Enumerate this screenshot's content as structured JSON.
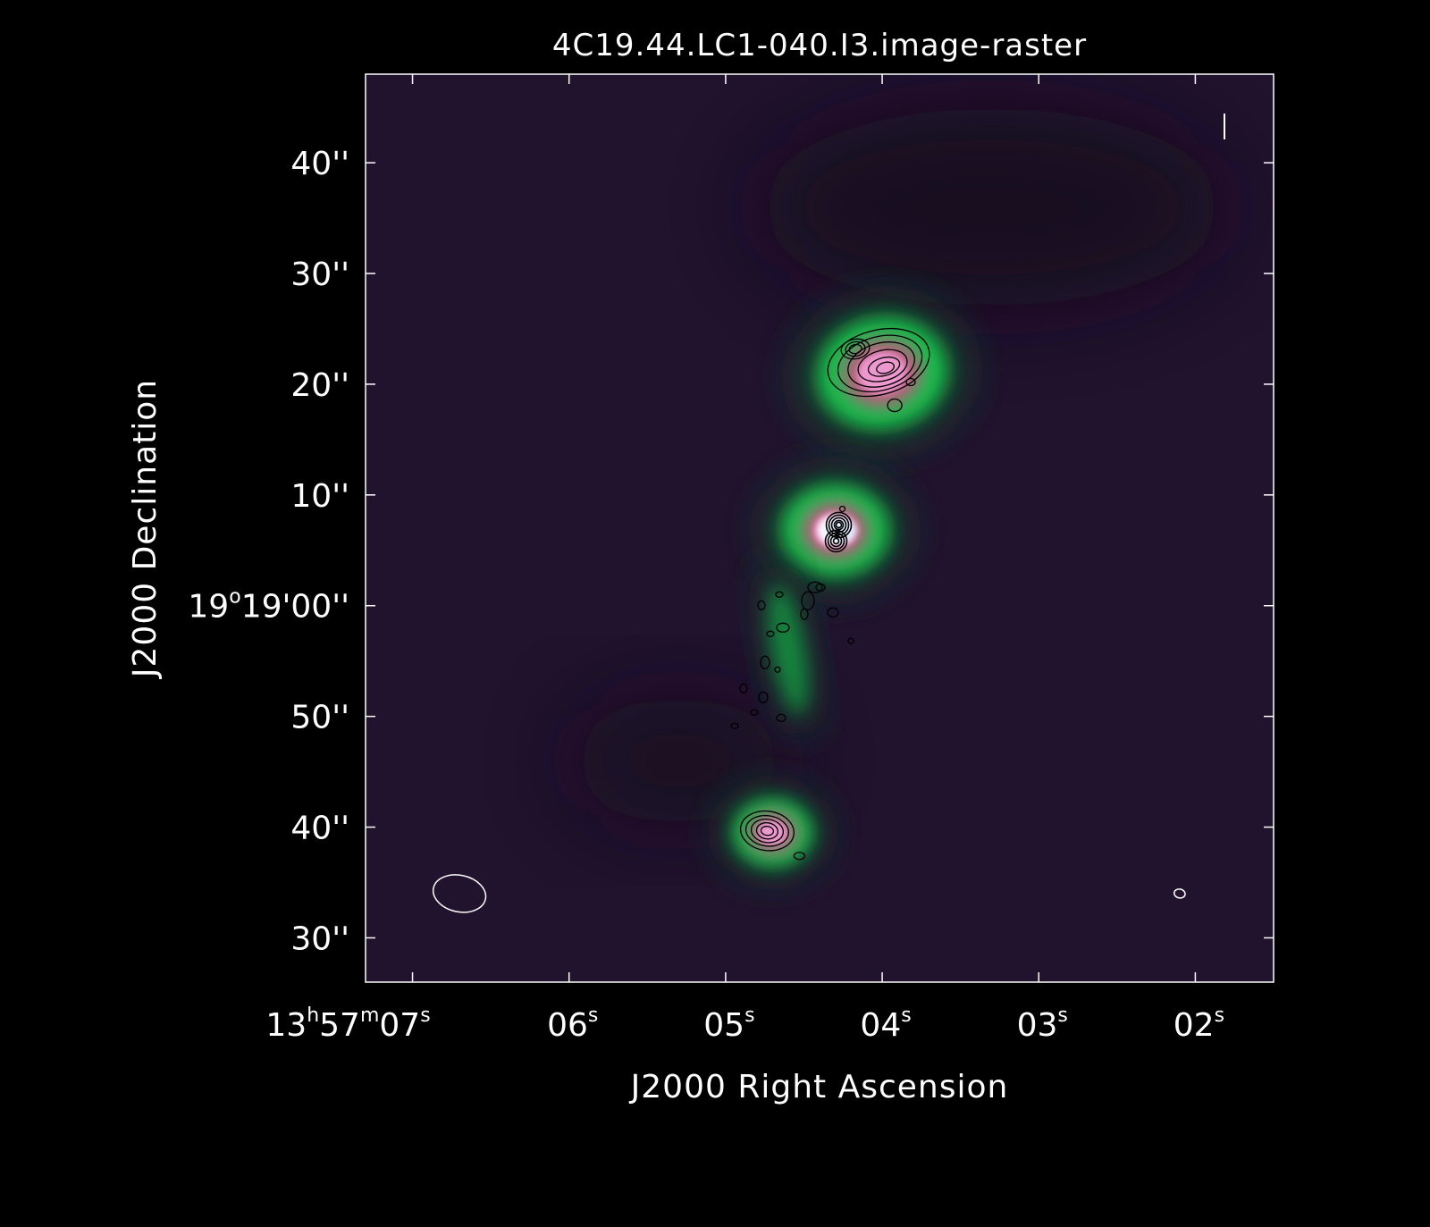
{
  "chart_data": {
    "type": "heatmap",
    "title": "4C19.44.LC1-040.I3.image-raster",
    "xlabel": "J2000 Right Ascension",
    "ylabel": "J2000 Declination",
    "x_ticks": [
      {
        "value_s": 7,
        "parts": [
          [
            "13",
            ""
          ],
          [
            "h",
            "sup"
          ],
          [
            "57",
            ""
          ],
          [
            "m",
            "sup"
          ],
          [
            "07",
            ""
          ],
          [
            "s",
            "sup"
          ]
        ]
      },
      {
        "value_s": 6,
        "parts": [
          [
            "06",
            ""
          ],
          [
            "s",
            "sup"
          ]
        ]
      },
      {
        "value_s": 5,
        "parts": [
          [
            "05",
            ""
          ],
          [
            "s",
            "sup"
          ]
        ]
      },
      {
        "value_s": 4,
        "parts": [
          [
            "04",
            ""
          ],
          [
            "s",
            "sup"
          ]
        ]
      },
      {
        "value_s": 3,
        "parts": [
          [
            "03",
            ""
          ],
          [
            "s",
            "sup"
          ]
        ]
      },
      {
        "value_s": 2,
        "parts": [
          [
            "02",
            ""
          ],
          [
            "s",
            "sup"
          ]
        ]
      }
    ],
    "y_ticks": [
      {
        "value_arcsec": 40,
        "parts": [
          [
            "40''",
            ""
          ]
        ]
      },
      {
        "value_arcsec": 30,
        "parts": [
          [
            "30''",
            ""
          ]
        ]
      },
      {
        "value_arcsec": 20,
        "parts": [
          [
            "20''",
            ""
          ]
        ]
      },
      {
        "value_arcsec": 10,
        "parts": [
          [
            "10''",
            ""
          ]
        ]
      },
      {
        "value_arcsec": 0,
        "parts": [
          [
            "19",
            ""
          ],
          [
            "o",
            "sup"
          ],
          [
            "19'00''",
            ""
          ]
        ]
      },
      {
        "value_arcsec": -10,
        "parts": [
          [
            "50''",
            ""
          ]
        ]
      },
      {
        "value_arcsec": -20,
        "parts": [
          [
            "40''",
            ""
          ]
        ]
      },
      {
        "value_arcsec": -30,
        "parts": [
          [
            "30''",
            ""
          ]
        ]
      }
    ],
    "x_range_s": [
      7.3,
      1.5
    ],
    "y_range_arcsec": [
      -34,
      48
    ],
    "colormap": [
      "#21122e",
      "#123e2c",
      "#12c64e",
      "#c65480",
      "#f2a0d8",
      "#ffffff"
    ],
    "background_color": "#21122e",
    "sources": [
      {
        "name": "northern lobe",
        "ra_s": 4.0,
        "dec_arcsec": 21.0,
        "peak": 0.78,
        "size_arcsec": 5.0
      },
      {
        "name": "core",
        "ra_s": 4.3,
        "dec_arcsec": 6.8,
        "peak": 1.0,
        "size_arcsec": 3.5
      },
      {
        "name": "jet",
        "ra_s": 4.6,
        "dec_arcsec": -4.0,
        "peak": 0.35,
        "size_arcsec": 3.0
      },
      {
        "name": "southern lobe",
        "ra_s": 4.7,
        "dec_arcsec": -20.5,
        "peak": 0.72,
        "size_arcsec": 3.2
      }
    ],
    "beams": [
      {
        "name": "raster beam",
        "ra_s": 6.7,
        "dec_arcsec": -26.0,
        "major_arcsec": 4.8,
        "minor_arcsec": 3.3,
        "color": "#ffffff"
      },
      {
        "name": "contour beam",
        "ra_s": 2.1,
        "dec_arcsec": -26.0,
        "major_arcsec": 1.0,
        "minor_arcsec": 0.8,
        "color": "#ffffff"
      }
    ],
    "contour_color": "#000000",
    "grid": false
  }
}
